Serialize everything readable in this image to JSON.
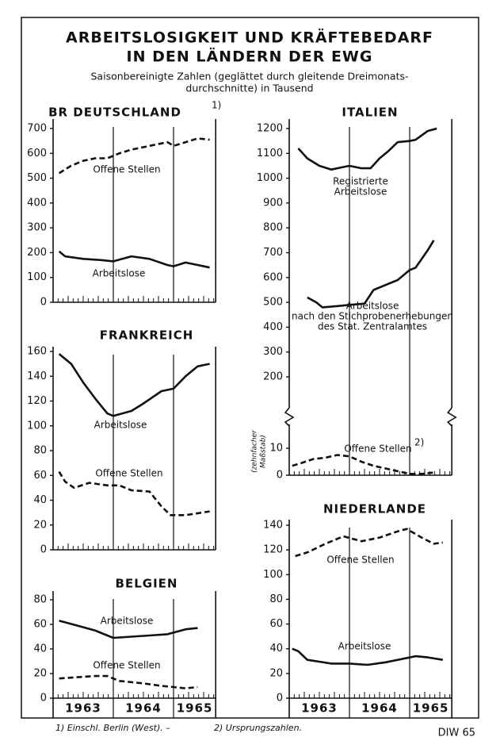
{
  "header": {
    "title": [
      "ARBEITSLOSIGKEIT UND KRÄFTEBEDARF",
      "IN DEN LÄNDERN DER EWG"
    ],
    "subtitle": [
      "Saisonbereinigte Zahlen (geglättet durch gleitende Dreimonats-",
      "durchschnitte) in Tausend"
    ]
  },
  "footer": {
    "notes": [
      "1) Einschl. Berlin (West). –",
      "2) Ursprungszahlen."
    ],
    "credit": "DIW 65"
  },
  "chart_data": [
    {
      "type": "line",
      "title": "BR DEUTSCHLAND",
      "title_note": "1)",
      "xlim": [
        1963,
        1965.7
      ],
      "ylim": [
        0,
        700
      ],
      "yticks": [
        0,
        100,
        200,
        300,
        400,
        500,
        600,
        700
      ],
      "series": [
        {
          "label": [
            "Offene Stellen"
          ],
          "dashed": true,
          "color": "#111",
          "x": [
            1963.1,
            1963.3,
            1963.5,
            1963.7,
            1963.9,
            1964.1,
            1964.3,
            1964.5,
            1964.7,
            1964.9,
            1965.0,
            1965.2,
            1965.4,
            1965.6
          ],
          "values": [
            520,
            550,
            570,
            580,
            580,
            600,
            615,
            625,
            635,
            645,
            630,
            645,
            660,
            655
          ]
        },
        {
          "label": [
            "Arbeitslose"
          ],
          "dashed": false,
          "color": "#111",
          "x": [
            1963.1,
            1963.2,
            1963.5,
            1963.8,
            1964.0,
            1964.3,
            1964.6,
            1964.9,
            1965.0,
            1965.2,
            1965.6
          ],
          "values": [
            205,
            185,
            175,
            170,
            165,
            185,
            175,
            150,
            145,
            160,
            140
          ]
        }
      ]
    },
    {
      "type": "line",
      "title": "ITALIEN",
      "xlim": [
        1963,
        1965.7
      ],
      "ylim": [
        50,
        1200
      ],
      "yticks": [
        200,
        300,
        400,
        500,
        600,
        700,
        800,
        900,
        1000,
        1100,
        1200
      ],
      "y2lim": [
        0,
        20
      ],
      "y2ticks": [
        0,
        10
      ],
      "y2_note": [
        "(zehnfacher",
        "Maßstab)"
      ],
      "series": [
        {
          "label": [
            "Registrierte",
            "Arbeitslose"
          ],
          "dashed": false,
          "color": "#111",
          "x": [
            1963.15,
            1963.3,
            1963.5,
            1963.7,
            1963.9,
            1964.0,
            1964.2,
            1964.35,
            1964.5,
            1964.65,
            1964.8,
            1965.0,
            1965.1,
            1965.3,
            1965.45
          ],
          "values": [
            1120,
            1080,
            1050,
            1035,
            1045,
            1050,
            1040,
            1040,
            1080,
            1110,
            1145,
            1150,
            1155,
            1190,
            1200
          ]
        },
        {
          "label": [
            "Arbeitslose",
            "nach den Stichprobenerhebungen",
            "des Stat. Zentralamtes"
          ],
          "dashed": false,
          "color": "#111",
          "x": [
            1963.3,
            1963.45,
            1963.55,
            1963.8,
            1964.0,
            1964.25,
            1964.4,
            1964.6,
            1964.8,
            1965.0,
            1965.1,
            1965.3,
            1965.4
          ],
          "values": [
            520,
            500,
            480,
            485,
            490,
            495,
            550,
            570,
            590,
            630,
            640,
            710,
            750
          ]
        },
        {
          "label": [
            "Offene Stellen"
          ],
          "label_note": "2)",
          "axis": "y2",
          "dashed": true,
          "color": "#111",
          "x": [
            1963.05,
            1963.2,
            1963.4,
            1963.6,
            1963.8,
            1964.0,
            1964.2,
            1964.4,
            1964.6,
            1964.8,
            1965.0,
            1965.2,
            1965.4
          ],
          "values": [
            3.5,
            4.5,
            6,
            6.5,
            7.5,
            7,
            5,
            3.5,
            2.5,
            1.5,
            0.5,
            0.5,
            1
          ]
        }
      ]
    },
    {
      "type": "line",
      "title": "FRANKREICH",
      "xlim": [
        1963,
        1965.7
      ],
      "ylim": [
        0,
        160
      ],
      "yticks": [
        0,
        20,
        40,
        60,
        80,
        100,
        120,
        140,
        160
      ],
      "series": [
        {
          "label": [
            "Arbeitslose"
          ],
          "dashed": false,
          "color": "#111",
          "x": [
            1963.1,
            1963.3,
            1963.5,
            1963.7,
            1963.9,
            1964.0,
            1964.3,
            1964.5,
            1964.8,
            1965.0,
            1965.2,
            1965.4,
            1965.6
          ],
          "values": [
            158,
            150,
            135,
            122,
            110,
            108,
            112,
            118,
            128,
            130,
            140,
            148,
            150
          ]
        },
        {
          "label": [
            "Offene Stellen"
          ],
          "dashed": true,
          "color": "#111",
          "x": [
            1963.1,
            1963.2,
            1963.35,
            1963.6,
            1963.9,
            1964.1,
            1964.3,
            1964.6,
            1964.8,
            1964.95,
            1965.2,
            1965.6
          ],
          "values": [
            63,
            55,
            50,
            54,
            52,
            52,
            48,
            47,
            35,
            28,
            28,
            31
          ]
        }
      ]
    },
    {
      "type": "line",
      "title": "BELGIEN",
      "xlim": [
        1963,
        1965.7
      ],
      "ylim": [
        0,
        80
      ],
      "yticks": [
        0,
        20,
        40,
        60,
        80
      ],
      "xticks": [
        {
          "value": 1963.5,
          "label": "1963"
        },
        {
          "value": 1964.5,
          "label": "1964"
        },
        {
          "value": 1965.35,
          "label": "1965"
        }
      ],
      "series": [
        {
          "label": [
            "Arbeitslose"
          ],
          "dashed": false,
          "color": "#111",
          "x": [
            1963.1,
            1963.4,
            1963.7,
            1964.0,
            1964.3,
            1964.6,
            1964.9,
            1965.2,
            1965.4
          ],
          "values": [
            63,
            59,
            55,
            49,
            50,
            51,
            52,
            56,
            57
          ]
        },
        {
          "label": [
            "Offene Stellen"
          ],
          "dashed": true,
          "color": "#111",
          "x": [
            1963.1,
            1963.4,
            1963.7,
            1963.9,
            1964.1,
            1964.5,
            1964.8,
            1965.0,
            1965.2,
            1965.4
          ],
          "values": [
            16,
            17,
            18,
            18,
            14,
            12,
            10,
            9,
            8,
            9
          ]
        }
      ]
    },
    {
      "type": "line",
      "title": "NIEDERLANDE",
      "xlim": [
        1963,
        1965.7
      ],
      "ylim": [
        0,
        140
      ],
      "yticks": [
        0,
        20,
        40,
        60,
        80,
        100,
        120,
        140
      ],
      "xticks": [
        {
          "value": 1963.5,
          "label": "1963"
        },
        {
          "value": 1964.5,
          "label": "1964"
        },
        {
          "value": 1965.35,
          "label": "1965"
        }
      ],
      "series": [
        {
          "label": [
            "Offene Stellen"
          ],
          "dashed": true,
          "color": "#111",
          "x": [
            1963.1,
            1963.3,
            1963.6,
            1963.9,
            1964.2,
            1964.5,
            1964.8,
            1964.95,
            1965.2,
            1965.4,
            1965.55
          ],
          "values": [
            115,
            118,
            125,
            131,
            127,
            130,
            135,
            137,
            130,
            125,
            126
          ]
        },
        {
          "label": [
            "Arbeitslose"
          ],
          "dashed": false,
          "color": "#111",
          "x": [
            1963.05,
            1963.15,
            1963.3,
            1963.7,
            1964.0,
            1964.3,
            1964.6,
            1964.9,
            1965.1,
            1965.3,
            1965.55
          ],
          "values": [
            40,
            38,
            31,
            28,
            28,
            27,
            29,
            32,
            34,
            33,
            31
          ]
        }
      ]
    }
  ]
}
